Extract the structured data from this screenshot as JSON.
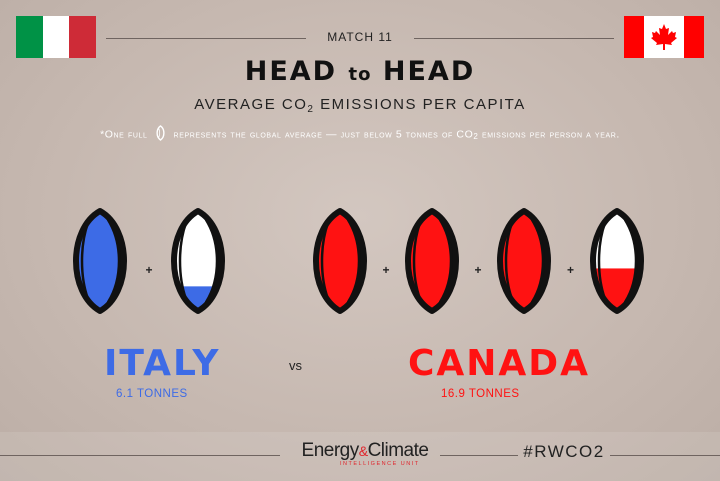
{
  "header": {
    "match": "MATCH 11",
    "title_part1": "HEAD",
    "title_to": "to",
    "title_part2": "HEAD",
    "subtitle_pre": "AVERAGE CO",
    "subtitle_sub": "2",
    "subtitle_post": " EMISSIONS PER CAPITA",
    "note_pre": "*One full",
    "note_mid": "represents the global average — just below 5 tonnes of CO",
    "note_sub": "2",
    "note_post": " emissions per person a year."
  },
  "teams": [
    {
      "name": "ITALY",
      "tonnes_label": "6.1 TONNES",
      "tonnes": 6.1,
      "balls_full": 1,
      "partial_fraction": 0.22,
      "color": "#3d6be6"
    },
    {
      "name": "CANADA",
      "tonnes_label": "16.9 TONNES",
      "tonnes": 16.9,
      "balls_full": 3,
      "partial_fraction": 0.38,
      "color": "#ff1212"
    }
  ],
  "vs": "vs",
  "plus": "+",
  "footer": {
    "logo_energy": "Energy",
    "logo_amp": "&",
    "logo_climate": "Climate",
    "logo_sub": "INTELLIGENCE UNIT",
    "hashtag": "#RWCO2"
  },
  "colors": {
    "italy_green": "#009246",
    "italy_red": "#ce2b37",
    "canada_red": "#ff0000"
  },
  "icons": [
    "italy-flag-icon",
    "canada-flag-icon",
    "rugby-ball-icon"
  ]
}
